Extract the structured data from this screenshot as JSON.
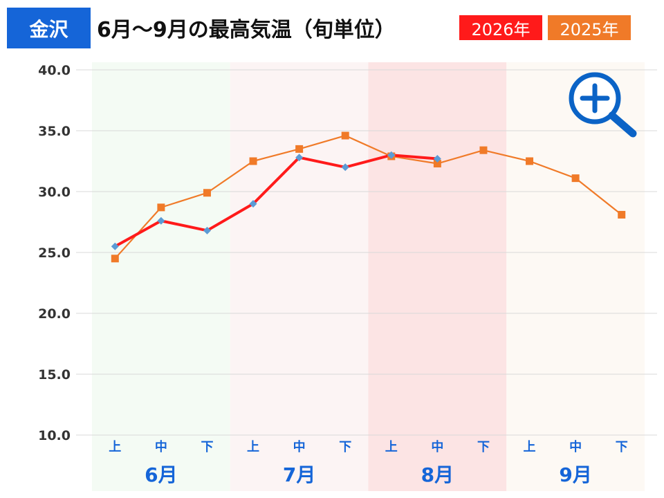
{
  "header": {
    "city": "金沢",
    "title": "6月〜9月の最高気温（旬単位）"
  },
  "colors": {
    "city_bg": "#1565d8",
    "accent_2026": "#ff1a1a",
    "accent_2025": "#f07a28",
    "month_label": "#1565d8",
    "june_band": "#f4fbf4",
    "july_band": "#fcf4f4",
    "august_band": "#fce4e4",
    "september_band": "#fdf9f4"
  },
  "zoom_icon": "zoom-in-icon",
  "chart_data": {
    "type": "line",
    "ylim": [
      10,
      40
    ],
    "yticks": [
      "10.0",
      "15.0",
      "20.0",
      "25.0",
      "30.0",
      "35.0",
      "40.0"
    ],
    "ytick_values": [
      10,
      15,
      20,
      25,
      30,
      35,
      40
    ],
    "grid": true,
    "legend_placement": "top-right",
    "categories": [
      "上",
      "中",
      "下",
      "上",
      "中",
      "下",
      "上",
      "中",
      "下",
      "上",
      "中",
      "下"
    ],
    "months": [
      "6月",
      "7月",
      "8月",
      "9月"
    ],
    "series": [
      {
        "name": "2026年",
        "color": "#ff1a1a",
        "marker": "diamond",
        "values": [
          25.5,
          27.6,
          26.8,
          29.0,
          32.8,
          32.0,
          33.0,
          32.7,
          null,
          null,
          null,
          null
        ]
      },
      {
        "name": "2025年",
        "color": "#f07a28",
        "marker": "square",
        "values": [
          24.5,
          28.7,
          29.9,
          32.5,
          33.5,
          34.6,
          32.9,
          32.3,
          33.4,
          32.5,
          31.1,
          28.1
        ]
      }
    ]
  }
}
